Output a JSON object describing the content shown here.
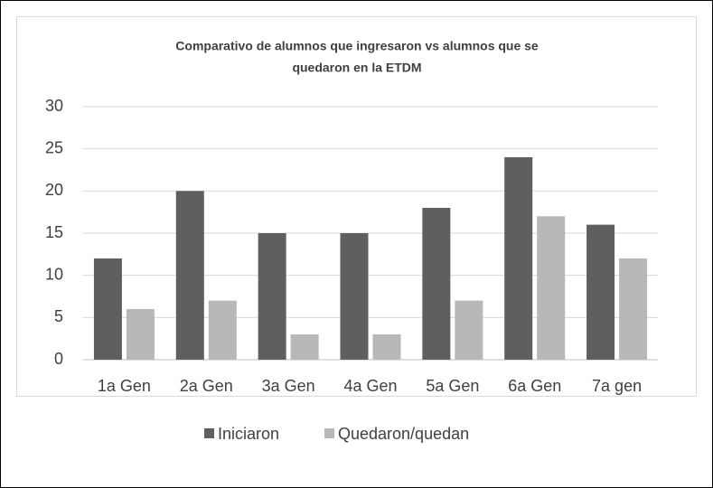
{
  "chart_data": {
    "type": "bar",
    "title": [
      "Comparativo de alumnos que ingresaron vs alumnos que se",
      "quedaron en la ETDM"
    ],
    "categories": [
      "1a Gen",
      "2a Gen",
      "3a Gen",
      "4a Gen",
      "5a Gen",
      "6a Gen",
      "7a gen"
    ],
    "series": [
      {
        "name": "Iniciaron",
        "color": "#5f5f5f",
        "values": [
          12,
          20,
          15,
          15,
          18,
          24,
          16
        ]
      },
      {
        "name": "Quedaron/quedan",
        "color": "#b8b8b8",
        "values": [
          6,
          7,
          3,
          3,
          7,
          17,
          12
        ]
      }
    ],
    "ylim": [
      0,
      30
    ],
    "yticks": [
      0,
      5,
      10,
      15,
      20,
      25,
      30
    ],
    "grid": true,
    "legend": "bottom"
  }
}
